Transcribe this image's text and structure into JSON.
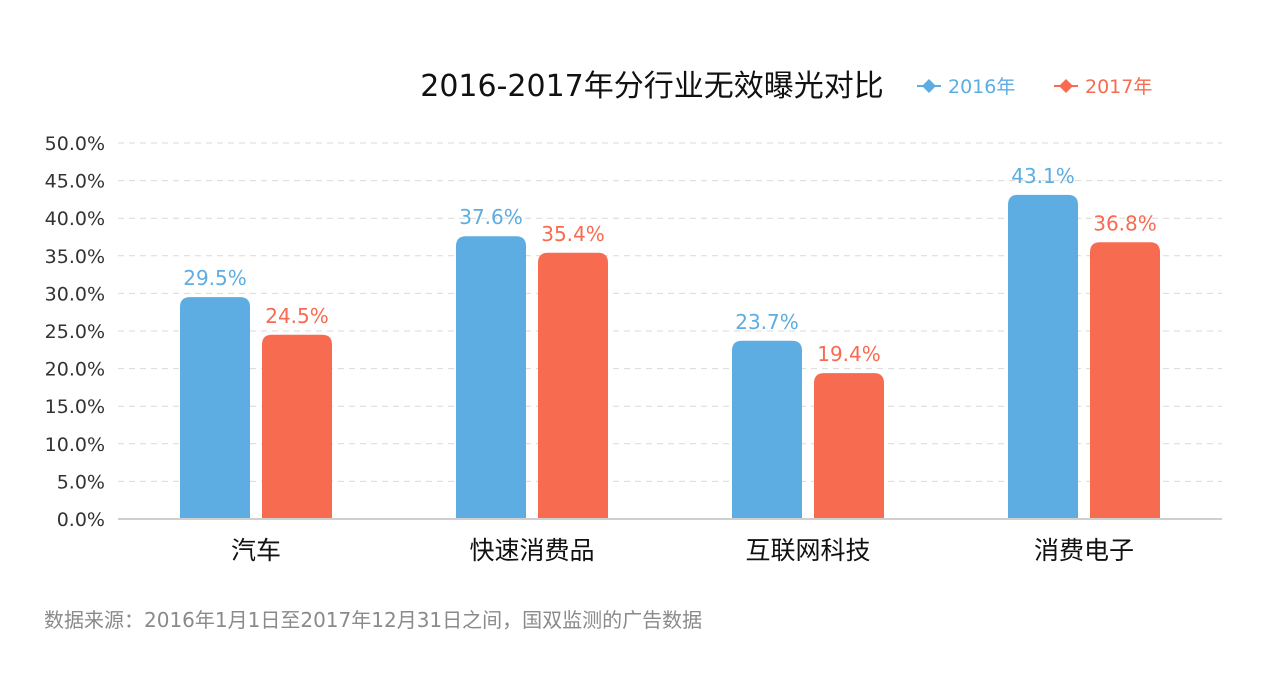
{
  "chart_data": {
    "type": "bar",
    "title": "2016-2017年分行业无效曝光对比",
    "categories": [
      "汽车",
      "快速消费品",
      "互联网科技",
      "消费电子"
    ],
    "series": [
      {
        "name": "2016年",
        "values": [
          29.5,
          37.6,
          23.7,
          43.1
        ],
        "value_labels": [
          "29.5%",
          "37.6%",
          "23.7%",
          "43.1%"
        ],
        "color": "#5dade2"
      },
      {
        "name": "2017年",
        "values": [
          24.5,
          35.4,
          19.4,
          36.8
        ],
        "value_labels": [
          "24.5%",
          "35.4%",
          "19.4%",
          "36.8%"
        ],
        "color": "#f76b50"
      }
    ],
    "yticks": [
      "0.0%",
      "5.0%",
      "10.0%",
      "15.0%",
      "20.0%",
      "25.0%",
      "30.0%",
      "35.0%",
      "40.0%",
      "45.0%",
      "50.0%"
    ],
    "ylim": [
      0,
      50
    ],
    "ytick_step": 5,
    "grid": true,
    "legend_position": "top-right",
    "xlabel": "",
    "ylabel": ""
  },
  "source_note": "数据来源：2016年1月1日至2017年12月31日之间，国双监测的广告数据"
}
